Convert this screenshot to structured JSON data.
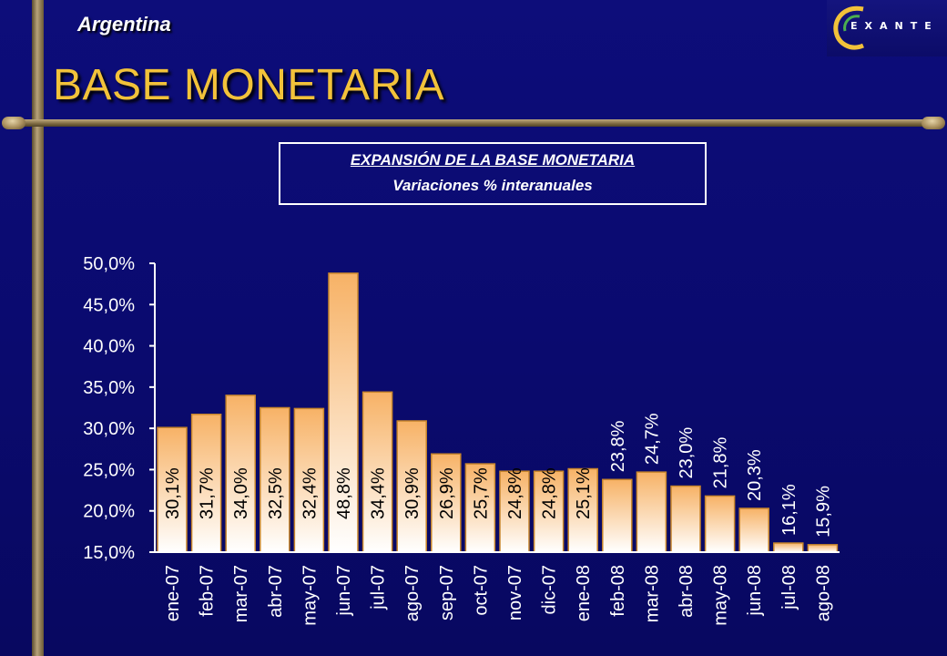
{
  "header": {
    "country": "Argentina",
    "title": "BASE MONETARIA",
    "logo_text": "EXANTE"
  },
  "colors": {
    "background": "#0a0a6e",
    "title": "#f2c23a",
    "bar_top": "#f7b266",
    "bar_bottom": "#ffffff",
    "bar_border": "#c8862c",
    "axis_text": "#ffffff",
    "label_text": "#000000"
  },
  "chart_data": {
    "type": "bar",
    "title": "EXPANSIÓN DE LA BASE MONETARIA",
    "subtitle": "Variaciones % interanuales",
    "categories": [
      "ene-07",
      "feb-07",
      "mar-07",
      "abr-07",
      "may-07",
      "jun-07",
      "jul-07",
      "ago-07",
      "sep-07",
      "oct-07",
      "nov-07",
      "dic-07",
      "ene-08",
      "feb-08",
      "mar-08",
      "abr-08",
      "may-08",
      "jun-08",
      "jul-08",
      "ago-08"
    ],
    "values": [
      30.1,
      31.7,
      34.0,
      32.5,
      32.4,
      48.8,
      34.4,
      30.9,
      26.9,
      25.7,
      24.8,
      24.8,
      25.1,
      23.8,
      24.7,
      23.0,
      21.8,
      20.3,
      16.1,
      15.9
    ],
    "labels": [
      "30,1%",
      "31,7%",
      "34,0%",
      "32,5%",
      "32,4%",
      "48,8%",
      "34,4%",
      "30,9%",
      "26,9%",
      "25,7%",
      "24,8%",
      "24,8%",
      "25,1%",
      "23,8%",
      "24,7%",
      "23,0%",
      "21,8%",
      "20,3%",
      "16,1%",
      "15,9%"
    ],
    "label_inside_count": 13,
    "ylim": [
      15,
      50
    ],
    "yticks": [
      15,
      20,
      25,
      30,
      35,
      40,
      45,
      50
    ],
    "ytick_labels": [
      "15,0%",
      "20,0%",
      "25,0%",
      "30,0%",
      "35,0%",
      "40,0%",
      "45,0%",
      "50,0%"
    ],
    "xlabel": "",
    "ylabel": "",
    "grid": false,
    "legend": "none"
  }
}
